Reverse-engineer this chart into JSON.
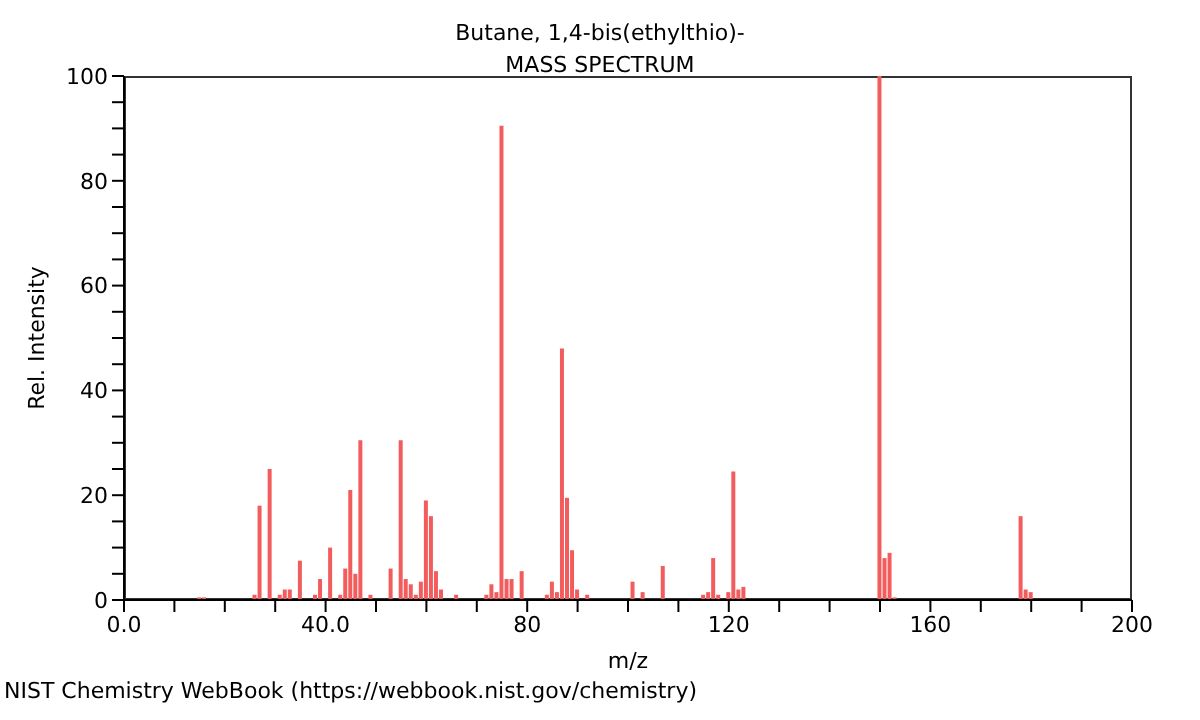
{
  "chart_data": {
    "type": "bar",
    "title": "Butane, 1,4-bis(ethylthio)-",
    "subtitle": "MASS SPECTRUM",
    "xlabel": "m/z",
    "ylabel": "Rel. Intensity",
    "annotations": [
      "NIST Chemistry WebBook (https://webbook.nist.gov/chemistry)"
    ],
    "x": [
      15,
      16,
      26,
      27,
      29,
      31,
      32,
      33,
      35,
      38,
      39,
      41,
      43,
      44,
      45,
      46,
      47,
      49,
      53,
      55,
      56,
      57,
      58,
      59,
      60,
      61,
      62,
      63,
      66,
      72,
      73,
      74,
      75,
      76,
      77,
      79,
      84,
      85,
      86,
      87,
      88,
      89,
      90,
      92,
      101,
      103,
      107,
      115,
      116,
      117,
      118,
      120,
      121,
      122,
      123,
      150,
      151,
      152,
      153,
      178,
      179,
      180
    ],
    "series": [
      {
        "color": "#f25c5c",
        "values": [
          0.5,
          0.5,
          1,
          18,
          25,
          1,
          2,
          2,
          7.5,
          1,
          4,
          10,
          1,
          6,
          21,
          5,
          30.5,
          1,
          6,
          30.5,
          4,
          3,
          1,
          3.5,
          19,
          16,
          5.5,
          2,
          1,
          1,
          3,
          1.5,
          90.5,
          4,
          4,
          5.5,
          1,
          3.5,
          1.5,
          48,
          19.5,
          9.5,
          2,
          1,
          3.5,
          1.5,
          6.5,
          1,
          1.5,
          8,
          1,
          1.5,
          24.5,
          2,
          2.5,
          100,
          8,
          9,
          0.5,
          16,
          2,
          1.5
        ]
      }
    ],
    "xlim": [
      0,
      200
    ],
    "ylim": [
      0,
      100
    ],
    "xticks": [
      {
        "value": 0,
        "label": "0.0"
      },
      {
        "value": 10,
        "label": null
      },
      {
        "value": 20,
        "label": null
      },
      {
        "value": 30,
        "label": null
      },
      {
        "value": 40,
        "label": "40.0"
      },
      {
        "value": 50,
        "label": null
      },
      {
        "value": 60,
        "label": null
      },
      {
        "value": 70,
        "label": null
      },
      {
        "value": 80,
        "label": "80"
      },
      {
        "value": 90,
        "label": null
      },
      {
        "value": 100,
        "label": null
      },
      {
        "value": 110,
        "label": null
      },
      {
        "value": 120,
        "label": "120"
      },
      {
        "value": 130,
        "label": null
      },
      {
        "value": 140,
        "label": null
      },
      {
        "value": 150,
        "label": null
      },
      {
        "value": 160,
        "label": "160"
      },
      {
        "value": 170,
        "label": null
      },
      {
        "value": 180,
        "label": null
      },
      {
        "value": 190,
        "label": null
      },
      {
        "value": 200,
        "label": "200"
      }
    ],
    "yticks": [
      0,
      {
        "value": 5,
        "label": null
      },
      {
        "value": 10,
        "label": null
      },
      {
        "value": 15,
        "label": null
      },
      20,
      {
        "value": 25,
        "label": null
      },
      {
        "value": 30,
        "label": null
      },
      {
        "value": 35,
        "label": null
      },
      40,
      {
        "value": 45,
        "label": null
      },
      {
        "value": 50,
        "label": null
      },
      {
        "value": 55,
        "label": null
      },
      60,
      {
        "value": 65,
        "label": null
      },
      {
        "value": 70,
        "label": null
      },
      {
        "value": 75,
        "label": null
      },
      80,
      {
        "value": 85,
        "label": null
      },
      {
        "value": 90,
        "label": null
      },
      {
        "value": 95,
        "label": null
      },
      100
    ],
    "grid": false,
    "legend": false
  }
}
